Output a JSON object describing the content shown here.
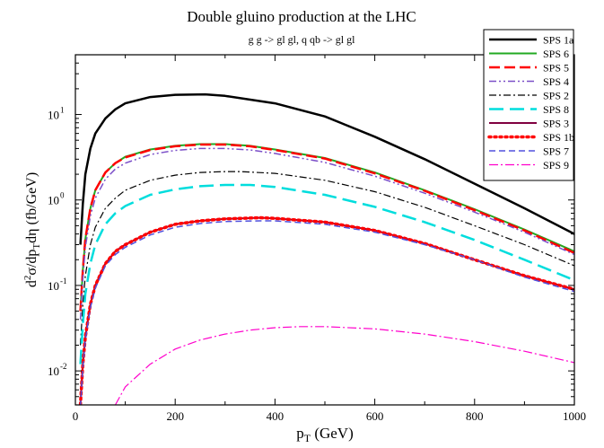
{
  "chart_data": {
    "type": "line",
    "title": "Double gluino production at the LHC",
    "subtitle": "g g -> gl gl,   q qb -> gl gl",
    "xlabel": {
      "main": "p",
      "sub": "T",
      "tail": " (GeV)"
    },
    "ylabel": {
      "d": "d",
      "two": "2",
      "sigma": "σ/dp",
      "sub": "T",
      "tail": "dη  (fb/GeV)"
    },
    "x_scale": "linear",
    "y_scale": "log",
    "xlim": [
      0,
      1000
    ],
    "ylim": [
      0.004,
      50
    ],
    "x_ticks": [
      {
        "value": 0,
        "label": "0"
      },
      {
        "value": 200,
        "label": "200"
      },
      {
        "value": 400,
        "label": "400"
      },
      {
        "value": 600,
        "label": "600"
      },
      {
        "value": 800,
        "label": "800"
      },
      {
        "value": 1000,
        "label": "1000"
      }
    ],
    "y_ticks": [
      {
        "value": 0.01,
        "base": "10",
        "exp": "-2"
      },
      {
        "value": 0.1,
        "base": "10",
        "exp": "-1"
      },
      {
        "value": 1,
        "base": "10",
        "exp": "0"
      },
      {
        "value": 10,
        "base": "10",
        "exp": "1"
      }
    ],
    "grid": false,
    "legend_position": "top-right",
    "series": [
      {
        "name": "SPS 1a",
        "color": "#000000",
        "width": 2.5,
        "dash": "",
        "x": [
          10,
          15,
          20,
          30,
          40,
          60,
          80,
          100,
          150,
          200,
          260,
          300,
          400,
          500,
          600,
          700,
          800,
          900,
          1000
        ],
        "y": [
          0.3,
          0.9,
          2.0,
          4.0,
          6.0,
          9.0,
          11.5,
          13.5,
          16.0,
          17.0,
          17.2,
          16.5,
          13.5,
          9.5,
          5.5,
          3.0,
          1.55,
          0.8,
          0.4
        ]
      },
      {
        "name": "SPS 6",
        "color": "#22aa22",
        "width": 2.0,
        "dash": "",
        "x": [
          10,
          15,
          20,
          30,
          40,
          60,
          80,
          100,
          150,
          200,
          250,
          300,
          350,
          400,
          500,
          600,
          700,
          800,
          900,
          1000
        ],
        "y": [
          0.05,
          0.15,
          0.35,
          0.8,
          1.3,
          2.1,
          2.7,
          3.2,
          3.9,
          4.3,
          4.5,
          4.5,
          4.3,
          3.9,
          3.1,
          2.1,
          1.3,
          0.78,
          0.45,
          0.25
        ]
      },
      {
        "name": "SPS 5",
        "color": "#ff0000",
        "width": 2.5,
        "dash": "12,5",
        "x": [
          10,
          15,
          20,
          30,
          40,
          60,
          80,
          100,
          150,
          200,
          250,
          300,
          350,
          400,
          500,
          600,
          700,
          800,
          900,
          1000
        ],
        "y": [
          0.05,
          0.15,
          0.35,
          0.8,
          1.3,
          2.1,
          2.7,
          3.15,
          3.85,
          4.25,
          4.45,
          4.45,
          4.25,
          3.85,
          3.05,
          2.05,
          1.28,
          0.76,
          0.44,
          0.24
        ]
      },
      {
        "name": "SPS 4",
        "color": "#7b4fc8",
        "width": 1.5,
        "dash": "8,3,2,3,2,3",
        "x": [
          10,
          15,
          20,
          30,
          40,
          60,
          80,
          100,
          150,
          200,
          250,
          300,
          350,
          400,
          500,
          600,
          700,
          800,
          900,
          1000
        ],
        "y": [
          0.04,
          0.12,
          0.28,
          0.65,
          1.05,
          1.75,
          2.3,
          2.7,
          3.4,
          3.8,
          4.0,
          4.0,
          3.85,
          3.5,
          2.75,
          1.9,
          1.2,
          0.72,
          0.42,
          0.23
        ]
      },
      {
        "name": "SPS 2",
        "color": "#000000",
        "width": 1.2,
        "dash": "8,3,2,3",
        "x": [
          10,
          15,
          20,
          30,
          40,
          60,
          80,
          100,
          150,
          200,
          250,
          300,
          330,
          400,
          500,
          600,
          700,
          800,
          900,
          1000
        ],
        "y": [
          0.02,
          0.06,
          0.13,
          0.3,
          0.48,
          0.8,
          1.05,
          1.3,
          1.7,
          1.95,
          2.1,
          2.15,
          2.15,
          2.05,
          1.7,
          1.25,
          0.82,
          0.5,
          0.3,
          0.17
        ]
      },
      {
        "name": "SPS 8",
        "color": "#00dddd",
        "width": 2.5,
        "dash": "16,7",
        "x": [
          10,
          15,
          20,
          30,
          40,
          60,
          80,
          100,
          150,
          200,
          250,
          300,
          350,
          400,
          500,
          600,
          700,
          800,
          900,
          1000
        ],
        "y": [
          0.012,
          0.035,
          0.08,
          0.18,
          0.3,
          0.52,
          0.7,
          0.85,
          1.15,
          1.33,
          1.45,
          1.5,
          1.5,
          1.42,
          1.15,
          0.83,
          0.55,
          0.34,
          0.2,
          0.115
        ]
      },
      {
        "name": "SPS 3",
        "color": "#800040",
        "width": 2.0,
        "dash": "",
        "x": [
          10,
          15,
          20,
          30,
          40,
          60,
          80,
          100,
          150,
          200,
          250,
          300,
          370,
          400,
          500,
          600,
          700,
          800,
          900,
          1000
        ],
        "y": [
          0.004,
          0.012,
          0.025,
          0.06,
          0.1,
          0.18,
          0.25,
          0.3,
          0.42,
          0.52,
          0.57,
          0.6,
          0.62,
          0.61,
          0.55,
          0.44,
          0.31,
          0.2,
          0.13,
          0.09
        ]
      },
      {
        "name": "SPS 1b",
        "color": "#ff0000",
        "width": 3.5,
        "dash": "2,4",
        "x": [
          10,
          15,
          20,
          30,
          40,
          60,
          80,
          100,
          150,
          200,
          250,
          300,
          370,
          400,
          500,
          600,
          700,
          800,
          900,
          1000
        ],
        "y": [
          0.004,
          0.012,
          0.025,
          0.06,
          0.1,
          0.18,
          0.25,
          0.3,
          0.42,
          0.52,
          0.57,
          0.6,
          0.62,
          0.61,
          0.55,
          0.44,
          0.31,
          0.2,
          0.13,
          0.09
        ]
      },
      {
        "name": "SPS 7",
        "color": "#5050dd",
        "width": 1.5,
        "dash": "7,4",
        "x": [
          10,
          15,
          20,
          30,
          40,
          60,
          80,
          100,
          150,
          200,
          250,
          300,
          370,
          400,
          500,
          600,
          700,
          800,
          900,
          1000
        ],
        "y": [
          0.0038,
          0.011,
          0.023,
          0.055,
          0.093,
          0.17,
          0.23,
          0.28,
          0.39,
          0.48,
          0.53,
          0.56,
          0.57,
          0.57,
          0.52,
          0.42,
          0.3,
          0.2,
          0.125,
          0.085
        ]
      },
      {
        "name": "SPS 9",
        "color": "#ff00cc",
        "width": 1.2,
        "dash": "10,3,2,3",
        "x": [
          80,
          100,
          150,
          200,
          250,
          300,
          350,
          400,
          450,
          500,
          600,
          700,
          800,
          900,
          1000
        ],
        "y": [
          0.004,
          0.0065,
          0.012,
          0.018,
          0.023,
          0.027,
          0.03,
          0.032,
          0.033,
          0.033,
          0.031,
          0.027,
          0.022,
          0.017,
          0.0125
        ]
      }
    ]
  }
}
